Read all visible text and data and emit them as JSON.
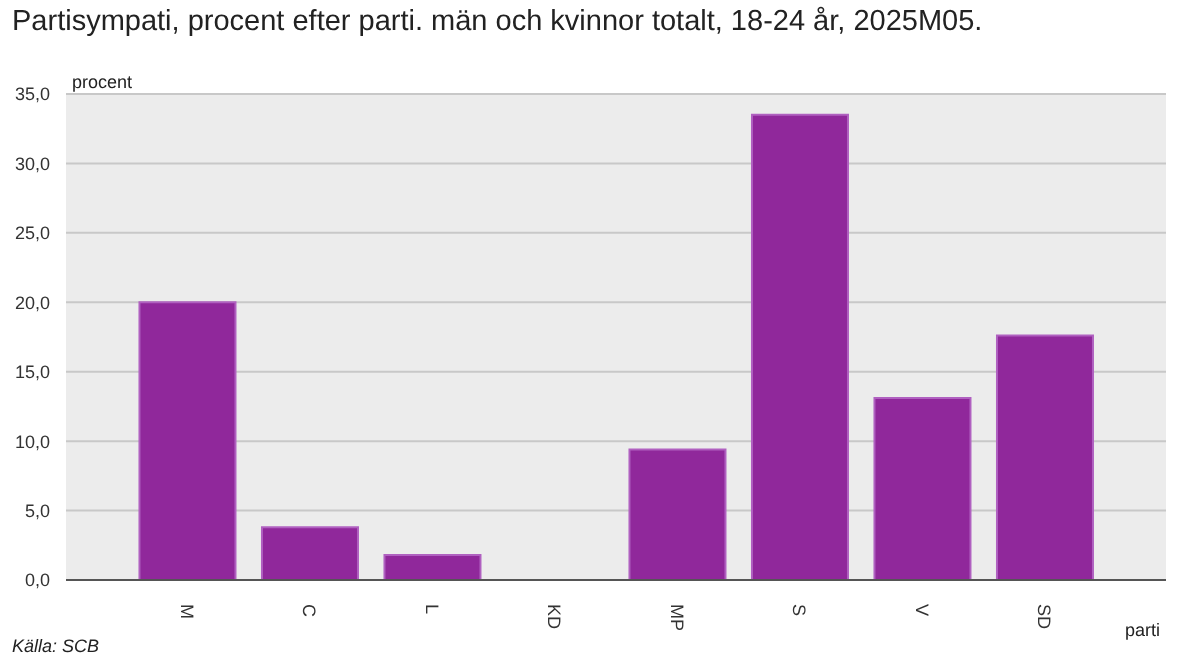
{
  "chart_data": {
    "type": "bar",
    "title": "Partisympati, procent efter parti. män och kvinnor totalt, 18-24 år, 2025M05.",
    "ylabel": "procent",
    "xlabel": "parti",
    "annotations": [
      "Källa: SCB"
    ],
    "categories": [
      "M",
      "C",
      "L",
      "KD",
      "MP",
      "S",
      "V",
      "SD"
    ],
    "values": [
      20.0,
      3.8,
      1.8,
      0,
      9.4,
      33.5,
      13.1,
      17.6
    ],
    "color": "#90289b",
    "ylim": [
      0,
      35
    ],
    "yticks": [
      {
        "value": 0,
        "label": "0,0"
      },
      {
        "value": 5,
        "label": "5,0"
      },
      {
        "value": 10,
        "label": "10,0"
      },
      {
        "value": 15,
        "label": "15,0"
      },
      {
        "value": 20,
        "label": "20,0"
      },
      {
        "value": 25,
        "label": "25,0"
      },
      {
        "value": 30,
        "label": "30,0"
      },
      {
        "value": 35,
        "label": "35,0"
      }
    ],
    "grid": "y"
  }
}
